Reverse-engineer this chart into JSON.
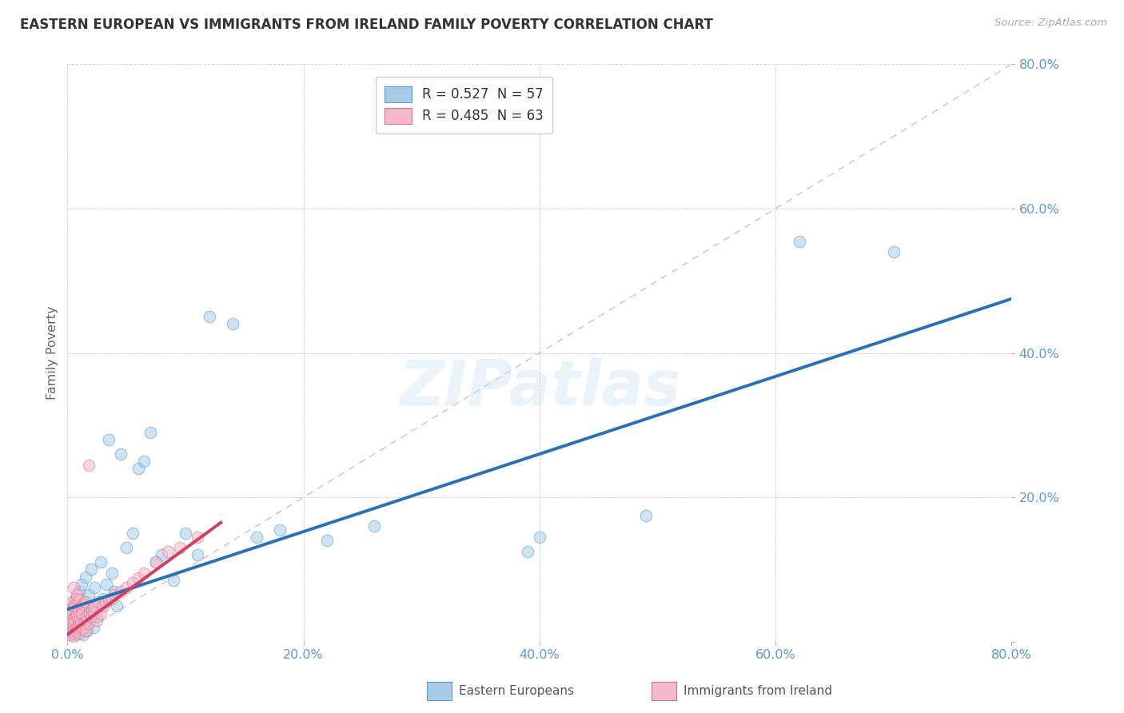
{
  "title": "EASTERN EUROPEAN VS IMMIGRANTS FROM IRELAND FAMILY POVERTY CORRELATION CHART",
  "source": "Source: ZipAtlas.com",
  "ylabel": "Family Poverty",
  "xlim": [
    0.0,
    0.8
  ],
  "ylim": [
    0.0,
    0.8
  ],
  "xtick_vals": [
    0.0,
    0.2,
    0.4,
    0.6,
    0.8
  ],
  "ytick_vals": [
    0.0,
    0.2,
    0.4,
    0.6,
    0.8
  ],
  "xticklabels": [
    "0.0%",
    "20.0%",
    "40.0%",
    "60.0%",
    "80.0%"
  ],
  "yticklabels": [
    "",
    "20.0%",
    "40.0%",
    "60.0%",
    "80.0%"
  ],
  "tick_color": "#5b9bd5",
  "grid_color": "#cccccc",
  "ref_line_color": "#ccbbbb",
  "series1_color": "#a8cce8",
  "series2_color": "#f5b8cc",
  "series1_edge": "#5b9bd5",
  "series2_edge": "#e07090",
  "trend1_color": "#2870b8",
  "trend2_color": "#d04060",
  "legend_R1": "R = 0.527",
  "legend_N1": "N = 57",
  "legend_R2": "R = 0.485",
  "legend_N2": "N = 63",
  "series1_label": "Eastern Europeans",
  "series2_label": "Immigrants from Ireland",
  "watermark": "ZIPatlas",
  "trend1_x": [
    0.0,
    0.8
  ],
  "trend1_y": [
    0.045,
    0.475
  ],
  "trend2_x": [
    0.0,
    0.13
  ],
  "trend2_y": [
    0.01,
    0.165
  ],
  "blue_x": [
    0.004,
    0.005,
    0.005,
    0.006,
    0.007,
    0.007,
    0.008,
    0.008,
    0.009,
    0.01,
    0.01,
    0.011,
    0.012,
    0.012,
    0.013,
    0.013,
    0.014,
    0.015,
    0.015,
    0.016,
    0.017,
    0.018,
    0.019,
    0.02,
    0.021,
    0.022,
    0.023,
    0.025,
    0.028,
    0.03,
    0.033,
    0.035,
    0.038,
    0.04,
    0.042,
    0.045,
    0.05,
    0.055,
    0.06,
    0.065,
    0.07,
    0.075,
    0.08,
    0.09,
    0.1,
    0.11,
    0.12,
    0.14,
    0.16,
    0.18,
    0.22,
    0.26,
    0.39,
    0.4,
    0.49,
    0.62,
    0.7
  ],
  "blue_y": [
    0.02,
    0.015,
    0.04,
    0.025,
    0.01,
    0.06,
    0.02,
    0.05,
    0.03,
    0.015,
    0.07,
    0.035,
    0.02,
    0.08,
    0.04,
    0.01,
    0.055,
    0.025,
    0.09,
    0.045,
    0.015,
    0.065,
    0.03,
    0.1,
    0.05,
    0.02,
    0.075,
    0.035,
    0.11,
    0.06,
    0.08,
    0.28,
    0.095,
    0.07,
    0.05,
    0.26,
    0.13,
    0.15,
    0.24,
    0.25,
    0.29,
    0.11,
    0.12,
    0.085,
    0.15,
    0.12,
    0.45,
    0.44,
    0.145,
    0.155,
    0.14,
    0.16,
    0.125,
    0.145,
    0.175,
    0.555,
    0.54
  ],
  "pink_x": [
    0.002,
    0.002,
    0.002,
    0.003,
    0.003,
    0.003,
    0.004,
    0.004,
    0.004,
    0.005,
    0.005,
    0.005,
    0.005,
    0.005,
    0.006,
    0.006,
    0.006,
    0.007,
    0.007,
    0.007,
    0.008,
    0.008,
    0.008,
    0.009,
    0.009,
    0.01,
    0.01,
    0.01,
    0.011,
    0.011,
    0.012,
    0.012,
    0.013,
    0.013,
    0.014,
    0.015,
    0.015,
    0.016,
    0.017,
    0.018,
    0.018,
    0.019,
    0.02,
    0.021,
    0.022,
    0.023,
    0.025,
    0.026,
    0.028,
    0.03,
    0.032,
    0.035,
    0.038,
    0.04,
    0.045,
    0.05,
    0.055,
    0.06,
    0.065,
    0.075,
    0.085,
    0.095,
    0.11
  ],
  "pink_y": [
    0.015,
    0.025,
    0.04,
    0.01,
    0.025,
    0.045,
    0.015,
    0.03,
    0.055,
    0.008,
    0.018,
    0.032,
    0.05,
    0.075,
    0.012,
    0.028,
    0.048,
    0.015,
    0.035,
    0.06,
    0.02,
    0.038,
    0.065,
    0.022,
    0.042,
    0.012,
    0.03,
    0.058,
    0.025,
    0.048,
    0.018,
    0.04,
    0.02,
    0.052,
    0.025,
    0.015,
    0.055,
    0.035,
    0.03,
    0.025,
    0.245,
    0.04,
    0.035,
    0.045,
    0.04,
    0.048,
    0.03,
    0.055,
    0.038,
    0.05,
    0.055,
    0.058,
    0.06,
    0.065,
    0.07,
    0.075,
    0.082,
    0.088,
    0.095,
    0.11,
    0.125,
    0.13,
    0.145
  ]
}
